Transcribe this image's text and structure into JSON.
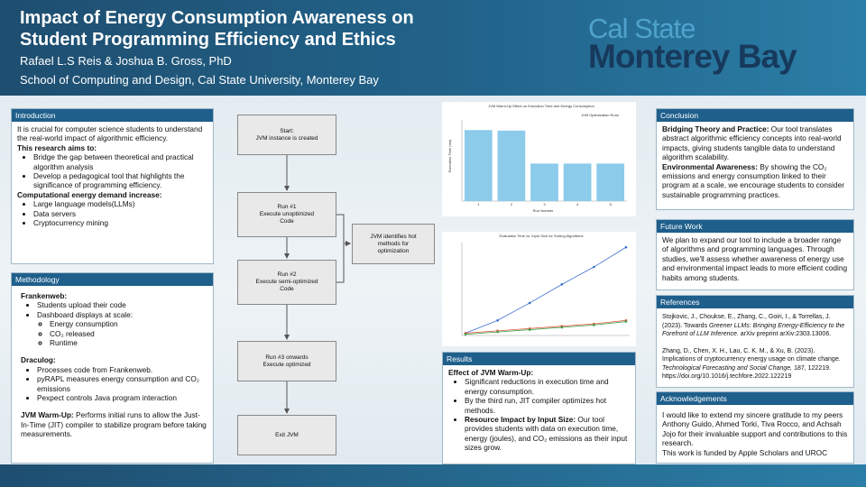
{
  "header": {
    "title_lines": [
      "Impact of Energy Consumption Awareness on",
      "Student Programming Efficiency and Ethics"
    ],
    "authors": "Rafael L.S Reis & Joshua B. Gross, PhD",
    "affiliation": "School of Computing and Design, Cal State University, Monterey Bay"
  },
  "logo": {
    "line1": "Cal State",
    "line2": "Monterey Bay"
  },
  "introduction": {
    "heading": "Introduction",
    "paragraph": "It is crucial for computer science students to understand the real-world impact of algorithmic efficiency.",
    "aims_label": "This research aims to:",
    "aims": [
      "Bridge the gap between theoretical and practical algorithm analysis",
      "Develop a pedagogical tool that highlights the significance of programming efficiency."
    ],
    "demand_label": "Computational energy demand increase:",
    "demand": [
      "Large language models(LLMs)",
      "Data servers",
      "Cryptocurrency mining"
    ]
  },
  "methodology": {
    "heading": "Methodology",
    "frankenweb_label": "Frankenweb:",
    "frankenweb": [
      "Students upload their code",
      "Dashboard displays at scale:"
    ],
    "frankenweb_sub": [
      "Energy consumption",
      "CO₂ released",
      "Runtime"
    ],
    "draculog_label": "Draculog:",
    "draculog": [
      "Processes code from Frankenweb.",
      "pyRAPL measures energy consumption and CO₂ emissions",
      "Pexpect controls Java program interaction"
    ],
    "warmup_label": "JVM Warm-Up:",
    "warmup_text": " Performs initial runs to allow the Just-In-Time (JIT) compiler to stabilize program before taking measurements."
  },
  "flowchart": {
    "nodes": [
      {
        "label": "Start:\nJVM instance is created"
      },
      {
        "label": "Run #1\nExecute unoptimized\nCode"
      },
      {
        "label": "Run #2\nExecute semi-optimized\nCode"
      },
      {
        "label": "JVM identifies hot\nmethods for\noptimization"
      },
      {
        "label": "Run #3 onwards\nExecute optimized"
      },
      {
        "label": "Exit JVM"
      }
    ]
  },
  "bar_chart": {
    "title": "JVM Warm-Up Effect on Execution Time and Energy Consumption",
    "legend": "JVM Optimization Runs",
    "x_label": "Run Number",
    "y_label": "Execution Time (ms)",
    "categories": [
      "1",
      "2",
      "3",
      "4",
      "5"
    ],
    "values": [
      140,
      139,
      74,
      74,
      74
    ],
    "ylim": [
      0,
      160
    ],
    "color": "#8ccbea"
  },
  "line_chart": {
    "title": "Evaluation Time vs. Input Size for Sorting Algorithms",
    "ylim": [
      0,
      80
    ],
    "series": [
      {
        "color": "#3b6fd0",
        "values": [
          2,
          13,
          28,
          44,
          59,
          76
        ]
      },
      {
        "color": "#e0553a",
        "values": [
          2,
          4,
          6,
          8,
          10,
          13
        ]
      },
      {
        "color": "#3aa24a",
        "values": [
          1,
          3,
          5,
          7,
          9,
          12
        ]
      }
    ]
  },
  "results": {
    "heading": "Results",
    "subheading": "Effect of JVM Warm-Up:",
    "bullets": [
      "Significant reductions in execution time and energy consumption.",
      "By the third run, JIT compiler optimizes hot methods."
    ],
    "impact_label": "Resource Impact by Input Size:",
    "impact_text": " Our tool provides students with data on execution time, energy (joules), and CO₂ emissions as their input sizes grow."
  },
  "conclusion": {
    "heading": "Conclusion",
    "p1_label": "Bridging Theory and Practice:",
    "p1_text": " Our tool translates abstract algorithmic efficiency concepts into real-world impacts, giving students tangible data to understand algorithm scalability.",
    "p2_label": "Environmental Awareness:",
    "p2_text": " By showing the CO₂ emissions and energy consumption linked to their program at a scale, we encourage students to consider sustainable programming practices."
  },
  "future_work": {
    "heading": "Future Work",
    "text": "We plan to expand our tool to include a broader range of algorithms and programming languages. Through studies, we'll assess whether awareness of energy use and environmental impact leads to more efficient coding habits among students."
  },
  "references": {
    "heading": "References",
    "items": [
      {
        "before": "Stojkovic, J., Choukse, E., Zhang, C., Goiri, I., & Torrellas, J. (2023). Towards ",
        "italic": "Greener LLMs: Bringing Energy-Efficiency to the Forefront of LLM Inference.",
        "after": " arXiv preprint arXiv:2303.13006."
      },
      {
        "before": "Zhang, D., Chen, X. H., Lau, C. K. M., & Xu, B. (2023). Implications of cryptocurrency energy usage on climate change. ",
        "italic": "Technological Forecasting and Social Change,",
        "after": " 187, 122219. https://doi.org/10.1016/j.techfore.2022.122219"
      }
    ]
  },
  "acknowledgements": {
    "heading": "Acknowledgements",
    "text": "I would like to extend my sincere gratitude to my peers Anthony Guido, Ahmed Torki, Tiva Rocco, and Achsah Jojo for their invaluable support and contributions to this research.",
    "funding": "This work is  funded by Apple Scholars and UROC"
  }
}
